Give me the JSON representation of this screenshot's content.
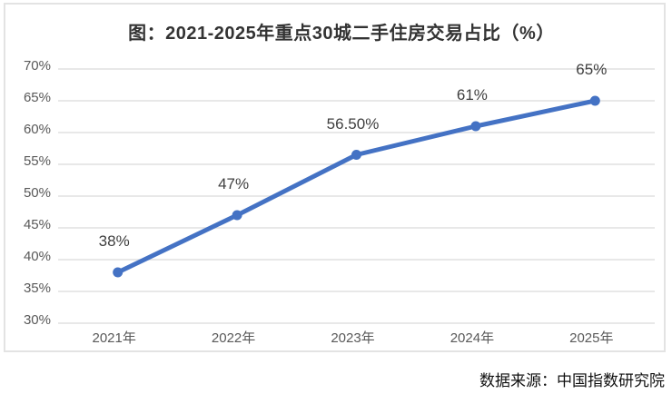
{
  "chart": {
    "colors": {
      "line": "#4472C4",
      "marker": "#4472C4",
      "grid": "#e0e0e0",
      "axis_text": "#595959",
      "data_label": "#3f3f3f",
      "title_text": "#333333",
      "border": "#e3e3e3",
      "background": "#ffffff"
    }
  },
  "chart_data": {
    "type": "line",
    "title": "图：2021-2025年重点30城二手住房交易占比（%）",
    "categories": [
      "2021年",
      "2022年",
      "2023年",
      "2024年",
      "2025年"
    ],
    "values": [
      38,
      47,
      56.5,
      61,
      65
    ],
    "point_labels": [
      "38%",
      "47%",
      "56.50%",
      "61%",
      "65%"
    ],
    "ylim": [
      30,
      70
    ],
    "ytick_step": 5,
    "ytick_labels": [
      "30%",
      "35%",
      "40%",
      "45%",
      "50%",
      "55%",
      "60%",
      "65%",
      "70%"
    ],
    "xlabel": "",
    "ylabel": "",
    "grid": true,
    "legend": "none",
    "source": "数据来源：中国指数研究院"
  }
}
